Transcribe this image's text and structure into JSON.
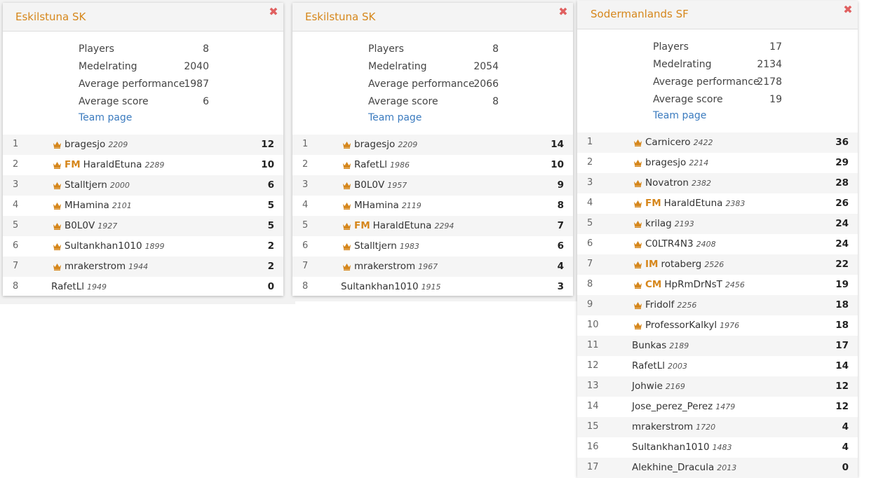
{
  "panels": [
    {
      "title": "Eskilstuna SK",
      "close_icon": "✖",
      "stats": [
        {
          "label": "Players",
          "value": "8"
        },
        {
          "label": "Medelrating",
          "value": "2040"
        },
        {
          "label": "Average performance",
          "value": "1987"
        },
        {
          "label": "Average score",
          "value": "6"
        }
      ],
      "team_link": "Team page",
      "players": [
        {
          "rank": "1",
          "crown": true,
          "title": "",
          "name": "bragesjo",
          "rating": "2209",
          "score": "12"
        },
        {
          "rank": "2",
          "crown": true,
          "title": "FM",
          "name": "HaraldEtuna",
          "rating": "2289",
          "score": "10"
        },
        {
          "rank": "3",
          "crown": true,
          "title": "",
          "name": "Stalltjern",
          "rating": "2000",
          "score": "6"
        },
        {
          "rank": "4",
          "crown": true,
          "title": "",
          "name": "MHamina",
          "rating": "2101",
          "score": "5"
        },
        {
          "rank": "5",
          "crown": true,
          "title": "",
          "name": "B0L0V",
          "rating": "1927",
          "score": "5"
        },
        {
          "rank": "6",
          "crown": true,
          "title": "",
          "name": "Sultankhan1010",
          "rating": "1899",
          "score": "2"
        },
        {
          "rank": "7",
          "crown": true,
          "title": "",
          "name": "mrakerstrom",
          "rating": "1944",
          "score": "2"
        },
        {
          "rank": "8",
          "crown": false,
          "title": "",
          "name": "RafetLl",
          "rating": "1949",
          "score": "0"
        }
      ]
    },
    {
      "title": "Eskilstuna SK",
      "close_icon": "✖",
      "stats": [
        {
          "label": "Players",
          "value": "8"
        },
        {
          "label": "Medelrating",
          "value": "2054"
        },
        {
          "label": "Average performance",
          "value": "2066"
        },
        {
          "label": "Average score",
          "value": "8"
        }
      ],
      "team_link": "Team page",
      "players": [
        {
          "rank": "1",
          "crown": true,
          "title": "",
          "name": "bragesjo",
          "rating": "2209",
          "score": "14"
        },
        {
          "rank": "2",
          "crown": true,
          "title": "",
          "name": "RafetLl",
          "rating": "1986",
          "score": "10"
        },
        {
          "rank": "3",
          "crown": true,
          "title": "",
          "name": "B0L0V",
          "rating": "1957",
          "score": "9"
        },
        {
          "rank": "4",
          "crown": true,
          "title": "",
          "name": "MHamina",
          "rating": "2119",
          "score": "8"
        },
        {
          "rank": "5",
          "crown": true,
          "title": "FM",
          "name": "HaraldEtuna",
          "rating": "2294",
          "score": "7"
        },
        {
          "rank": "6",
          "crown": true,
          "title": "",
          "name": "Stalltjern",
          "rating": "1983",
          "score": "6"
        },
        {
          "rank": "7",
          "crown": true,
          "title": "",
          "name": "mrakerstrom",
          "rating": "1967",
          "score": "4"
        },
        {
          "rank": "8",
          "crown": false,
          "title": "",
          "name": "Sultankhan1010",
          "rating": "1915",
          "score": "3"
        }
      ]
    },
    {
      "title": "Sodermanlands SF",
      "close_icon": "✖",
      "stats": [
        {
          "label": "Players",
          "value": "17"
        },
        {
          "label": "Medelrating",
          "value": "2134"
        },
        {
          "label": "Average performance",
          "value": "2178"
        },
        {
          "label": "Average score",
          "value": "19"
        }
      ],
      "team_link": "Team page",
      "players": [
        {
          "rank": "1",
          "crown": true,
          "title": "",
          "name": "Carnicero",
          "rating": "2422",
          "score": "36"
        },
        {
          "rank": "2",
          "crown": true,
          "title": "",
          "name": "bragesjo",
          "rating": "2214",
          "score": "29"
        },
        {
          "rank": "3",
          "crown": true,
          "title": "",
          "name": "Novatron",
          "rating": "2382",
          "score": "28"
        },
        {
          "rank": "4",
          "crown": true,
          "title": "FM",
          "name": "HaraldEtuna",
          "rating": "2383",
          "score": "26"
        },
        {
          "rank": "5",
          "crown": true,
          "title": "",
          "name": "krilag",
          "rating": "2193",
          "score": "24"
        },
        {
          "rank": "6",
          "crown": true,
          "title": "",
          "name": "C0LTR4N3",
          "rating": "2408",
          "score": "24"
        },
        {
          "rank": "7",
          "crown": true,
          "title": "IM",
          "name": "rotaberg",
          "rating": "2526",
          "score": "22"
        },
        {
          "rank": "8",
          "crown": true,
          "title": "CM",
          "name": "HpRmDrNsT",
          "rating": "2456",
          "score": "19"
        },
        {
          "rank": "9",
          "crown": true,
          "title": "",
          "name": "Fridolf",
          "rating": "2256",
          "score": "18"
        },
        {
          "rank": "10",
          "crown": true,
          "title": "",
          "name": "ProfessorKalkyl",
          "rating": "1976",
          "score": "18"
        },
        {
          "rank": "11",
          "crown": false,
          "title": "",
          "name": "Bunkas",
          "rating": "2189",
          "score": "17"
        },
        {
          "rank": "12",
          "crown": false,
          "title": "",
          "name": "RafetLl",
          "rating": "2003",
          "score": "14"
        },
        {
          "rank": "13",
          "crown": false,
          "title": "",
          "name": "Johwie",
          "rating": "2169",
          "score": "12"
        },
        {
          "rank": "14",
          "crown": false,
          "title": "",
          "name": "Jose_perez_Perez",
          "rating": "1479",
          "score": "12"
        },
        {
          "rank": "15",
          "crown": false,
          "title": "",
          "name": "mrakerstrom",
          "rating": "1720",
          "score": "4"
        },
        {
          "rank": "16",
          "crown": false,
          "title": "",
          "name": "Sultankhan1010",
          "rating": "1483",
          "score": "4"
        },
        {
          "rank": "17",
          "crown": false,
          "title": "",
          "name": "Alekhine_Dracula",
          "rating": "2013",
          "score": "0"
        }
      ]
    }
  ],
  "colors": {
    "accent": "#d6871c",
    "link": "#3b7bbf",
    "close": "#e06060"
  }
}
